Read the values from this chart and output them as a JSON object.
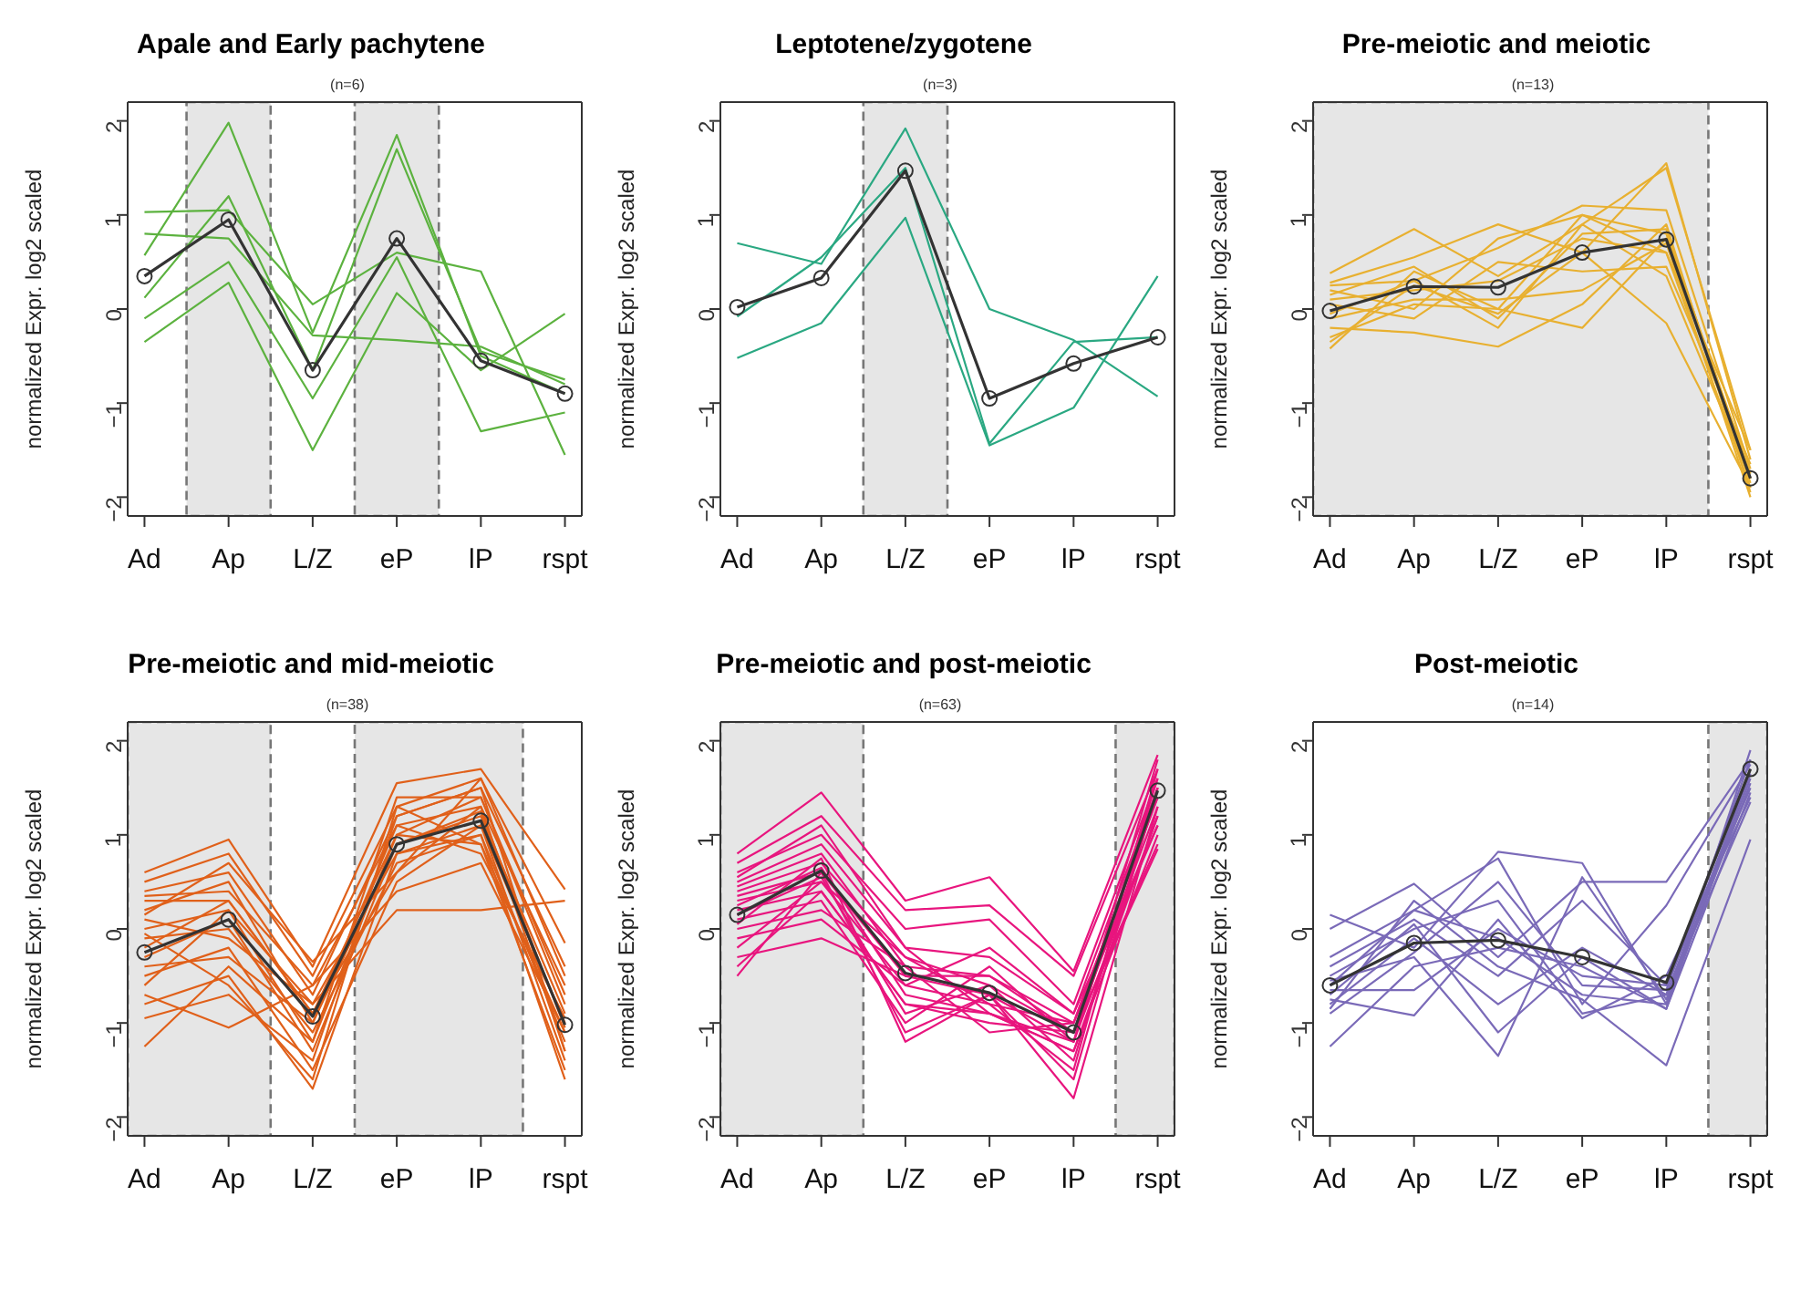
{
  "chart_data": [
    {
      "type": "line",
      "title": "Apale and Early pachytene",
      "annotations": [
        "(n=6)"
      ],
      "ylabel": "normalized Expr. log2 scaled",
      "categories": [
        "Ad",
        "Ap",
        "L/Z",
        "eP",
        "lP",
        "rspt"
      ],
      "ylim": [
        -2.2,
        2.2
      ],
      "yticks": [
        -2,
        -1,
        0,
        1,
        2
      ],
      "grid": false,
      "legend": false,
      "bands": [
        {
          "axis": "x",
          "from": "Ap",
          "to": "Ap",
          "color": "#e6e6e6"
        },
        {
          "axis": "x",
          "from": "eP",
          "to": "eP",
          "color": "#e6e6e6"
        }
      ],
      "series": [
        {
          "color": "#5cb23f",
          "marker": "none",
          "values": [
            1.03,
            1.05,
            0.05,
            0.6,
            0.4,
            -1.55
          ]
        },
        {
          "color": "#5cb23f",
          "marker": "none",
          "values": [
            0.8,
            0.75,
            -0.28,
            -0.33,
            -0.4,
            -0.8
          ]
        },
        {
          "color": "#5cb23f",
          "marker": "none",
          "values": [
            0.57,
            1.98,
            -0.25,
            1.85,
            -0.5,
            -0.9
          ]
        },
        {
          "color": "#5cb23f",
          "marker": "none",
          "values": [
            0.12,
            1.2,
            -0.65,
            1.7,
            -0.45,
            -0.75
          ]
        },
        {
          "color": "#5cb23f",
          "marker": "none",
          "values": [
            -0.1,
            0.5,
            -0.95,
            0.55,
            -1.3,
            -1.1
          ]
        },
        {
          "color": "#5cb23f",
          "marker": "none",
          "values": [
            -0.35,
            0.28,
            -1.5,
            0.17,
            -0.65,
            -0.05
          ]
        },
        {
          "color": "#333333",
          "marker": "circle",
          "values": [
            0.35,
            0.95,
            -0.65,
            0.75,
            -0.55,
            -0.9
          ]
        }
      ]
    },
    {
      "type": "line",
      "title": "Leptotene/zygotene",
      "annotations": [
        "(n=3)"
      ],
      "ylabel": "normalized Expr. log2 scaled",
      "categories": [
        "Ad",
        "Ap",
        "L/Z",
        "eP",
        "lP",
        "rspt"
      ],
      "ylim": [
        -2.2,
        2.2
      ],
      "yticks": [
        -2,
        -1,
        0,
        1,
        2
      ],
      "grid": false,
      "legend": false,
      "bands": [
        {
          "axis": "x",
          "from": "L/Z",
          "to": "L/Z",
          "color": "#e6e6e6"
        }
      ],
      "series": [
        {
          "color": "#2aa882",
          "marker": "none",
          "values": [
            0.7,
            0.48,
            1.92,
            0.0,
            -0.33,
            -0.93
          ]
        },
        {
          "color": "#2aa882",
          "marker": "none",
          "values": [
            -0.08,
            0.55,
            1.5,
            -1.43,
            -0.35,
            -0.3
          ]
        },
        {
          "color": "#2aa882",
          "marker": "none",
          "values": [
            -0.52,
            -0.15,
            0.97,
            -1.45,
            -1.05,
            0.35
          ]
        },
        {
          "color": "#333333",
          "marker": "circle",
          "values": [
            0.02,
            0.33,
            1.47,
            -0.95,
            -0.58,
            -0.3
          ]
        }
      ]
    },
    {
      "type": "line",
      "title": "Pre-meiotic and meiotic",
      "annotations": [
        "(n=13)"
      ],
      "ylabel": "normalized Expr. log2 scaled",
      "categories": [
        "Ad",
        "Ap",
        "L/Z",
        "eP",
        "lP",
        "rspt"
      ],
      "ylim": [
        -2.2,
        2.2
      ],
      "yticks": [
        -2,
        -1,
        0,
        1,
        2
      ],
      "grid": false,
      "legend": false,
      "bands": [
        {
          "axis": "x",
          "from": "Ad",
          "to": "lP",
          "color": "#e6e6e6"
        }
      ],
      "series": [
        {
          "color": "#e8b030",
          "marker": "none",
          "values": [
            0.38,
            0.85,
            0.35,
            0.9,
            1.5,
            -1.5
          ]
        },
        {
          "color": "#e8b030",
          "marker": "none",
          "values": [
            0.28,
            0.55,
            0.9,
            0.6,
            1.55,
            -1.6
          ]
        },
        {
          "color": "#e8b030",
          "marker": "none",
          "values": [
            0.25,
            0.3,
            0.65,
            1.1,
            1.05,
            -1.7
          ]
        },
        {
          "color": "#e8b030",
          "marker": "none",
          "values": [
            0.2,
            0.0,
            0.75,
            1.0,
            0.8,
            -1.75
          ]
        },
        {
          "color": "#e8b030",
          "marker": "none",
          "values": [
            0.15,
            0.45,
            -0.1,
            0.8,
            0.85,
            -1.85
          ]
        },
        {
          "color": "#e8b030",
          "marker": "none",
          "values": [
            0.1,
            0.2,
            0.3,
            0.75,
            0.6,
            -1.9
          ]
        },
        {
          "color": "#e8b030",
          "marker": "none",
          "values": [
            0.05,
            -0.1,
            0.5,
            0.4,
            0.45,
            -1.65
          ]
        },
        {
          "color": "#e8b030",
          "marker": "none",
          "values": [
            -0.05,
            0.3,
            -0.2,
            0.9,
            0.35,
            -1.8
          ]
        },
        {
          "color": "#e8b030",
          "marker": "none",
          "values": [
            -0.1,
            0.1,
            0.1,
            0.2,
            0.7,
            -2.0
          ]
        },
        {
          "color": "#e8b030",
          "marker": "none",
          "values": [
            -0.2,
            -0.25,
            -0.4,
            0.05,
            0.9,
            -1.95
          ]
        },
        {
          "color": "#e8b030",
          "marker": "none",
          "values": [
            -0.3,
            0.05,
            0.0,
            -0.2,
            0.75,
            -1.8
          ]
        },
        {
          "color": "#e8b030",
          "marker": "none",
          "values": [
            -0.35,
            0.25,
            -0.05,
            0.6,
            -0.15,
            -1.9
          ]
        },
        {
          "color": "#e8b030",
          "marker": "none",
          "values": [
            -0.42,
            0.4,
            0.0,
            1.0,
            0.6,
            -1.5
          ]
        },
        {
          "color": "#333333",
          "marker": "circle",
          "values": [
            -0.02,
            0.24,
            0.23,
            0.6,
            0.74,
            -1.8
          ]
        }
      ]
    },
    {
      "type": "line",
      "title": "Pre-meiotic and mid-meiotic",
      "annotations": [
        "(n=38)"
      ],
      "ylabel": "normalized Expr. log2 scaled",
      "categories": [
        "Ad",
        "Ap",
        "L/Z",
        "eP",
        "lP",
        "rspt"
      ],
      "ylim": [
        -2.2,
        2.2
      ],
      "yticks": [
        -2,
        -1,
        0,
        1,
        2
      ],
      "grid": false,
      "legend": false,
      "bands": [
        {
          "axis": "x",
          "from": "Ad",
          "to": "Ap",
          "color": "#e6e6e6"
        },
        {
          "axis": "x",
          "from": "eP",
          "to": "lP",
          "color": "#e6e6e6"
        }
      ],
      "series": [
        {
          "color": "#e0601a",
          "marker": "none",
          "values": [
            0.6,
            0.95,
            -0.4,
            1.55,
            1.7,
            0.42
          ]
        },
        {
          "color": "#e0601a",
          "marker": "none",
          "values": [
            0.5,
            0.8,
            -0.5,
            1.3,
            1.6,
            -0.15
          ]
        },
        {
          "color": "#e0601a",
          "marker": "none",
          "values": [
            0.4,
            0.6,
            -0.7,
            1.2,
            1.5,
            -0.4
          ]
        },
        {
          "color": "#e0601a",
          "marker": "none",
          "values": [
            0.35,
            0.4,
            -0.6,
            1.1,
            1.3,
            -0.6
          ]
        },
        {
          "color": "#e0601a",
          "marker": "none",
          "values": [
            0.3,
            0.3,
            -0.9,
            1.0,
            1.4,
            -0.8
          ]
        },
        {
          "color": "#e0601a",
          "marker": "none",
          "values": [
            0.2,
            0.5,
            -1.0,
            0.9,
            1.2,
            -0.9
          ]
        },
        {
          "color": "#e0601a",
          "marker": "none",
          "values": [
            0.1,
            -0.1,
            -0.8,
            0.8,
            1.1,
            -1.0
          ]
        },
        {
          "color": "#e0601a",
          "marker": "none",
          "values": [
            0.0,
            0.2,
            -1.2,
            1.0,
            0.9,
            -1.1
          ]
        },
        {
          "color": "#e0601a",
          "marker": "none",
          "values": [
            -0.1,
            0.0,
            -1.1,
            0.7,
            1.0,
            -1.2
          ]
        },
        {
          "color": "#e0601a",
          "marker": "none",
          "values": [
            -0.2,
            0.3,
            -0.9,
            0.6,
            1.3,
            -1.3
          ]
        },
        {
          "color": "#e0601a",
          "marker": "none",
          "values": [
            -0.3,
            0.1,
            -1.3,
            0.9,
            1.25,
            -1.05
          ]
        },
        {
          "color": "#e0601a",
          "marker": "none",
          "values": [
            -0.4,
            -0.3,
            -1.0,
            1.1,
            0.8,
            -0.95
          ]
        },
        {
          "color": "#e0601a",
          "marker": "none",
          "values": [
            -0.5,
            -0.2,
            -1.5,
            0.5,
            1.1,
            -1.4
          ]
        },
        {
          "color": "#e0601a",
          "marker": "none",
          "values": [
            -0.6,
            0.2,
            -0.8,
            0.2,
            0.2,
            0.3
          ]
        },
        {
          "color": "#e0601a",
          "marker": "none",
          "values": [
            -0.7,
            -1.05,
            -0.6,
            0.4,
            0.7,
            -1.1
          ]
        },
        {
          "color": "#e0601a",
          "marker": "none",
          "values": [
            -0.8,
            -0.5,
            -1.7,
            0.8,
            1.0,
            -1.6
          ]
        },
        {
          "color": "#e0601a",
          "marker": "none",
          "values": [
            -0.95,
            -0.7,
            -1.4,
            1.2,
            1.5,
            -1.3
          ]
        },
        {
          "color": "#e0601a",
          "marker": "none",
          "values": [
            -1.25,
            -0.4,
            -1.2,
            1.4,
            1.4,
            -0.7
          ]
        },
        {
          "color": "#e0601a",
          "marker": "none",
          "values": [
            0.15,
            0.7,
            -0.35,
            0.6,
            1.6,
            -0.5
          ]
        },
        {
          "color": "#e0601a",
          "marker": "none",
          "values": [
            -0.05,
            -0.6,
            -1.6,
            1.3,
            0.9,
            -1.5
          ]
        },
        {
          "color": "#333333",
          "marker": "circle",
          "values": [
            -0.25,
            0.1,
            -0.93,
            0.9,
            1.15,
            -1.02
          ]
        }
      ]
    },
    {
      "type": "line",
      "title": "Pre-meiotic and post-meiotic",
      "annotations": [
        "(n=63)"
      ],
      "ylabel": "normalized Expr. log2 scaled",
      "categories": [
        "Ad",
        "Ap",
        "L/Z",
        "eP",
        "lP",
        "rspt"
      ],
      "ylim": [
        -2.2,
        2.2
      ],
      "yticks": [
        -2,
        -1,
        0,
        1,
        2
      ],
      "grid": false,
      "legend": false,
      "bands": [
        {
          "axis": "x",
          "from": "Ad",
          "to": "Ap",
          "color": "#e6e6e6"
        },
        {
          "axis": "x",
          "from": "rspt",
          "to": "rspt",
          "color": "#e6e6e6"
        }
      ],
      "series": [
        {
          "color": "#e8157e",
          "marker": "none",
          "values": [
            0.8,
            1.45,
            0.3,
            0.55,
            -0.45,
            1.85
          ]
        },
        {
          "color": "#e8157e",
          "marker": "none",
          "values": [
            0.7,
            1.2,
            0.2,
            0.25,
            -0.5,
            1.7
          ]
        },
        {
          "color": "#e8157e",
          "marker": "none",
          "values": [
            0.6,
            1.0,
            0.0,
            0.1,
            -0.8,
            1.6
          ]
        },
        {
          "color": "#e8157e",
          "marker": "none",
          "values": [
            0.5,
            0.9,
            -0.2,
            -0.3,
            -0.9,
            1.5
          ]
        },
        {
          "color": "#e8157e",
          "marker": "none",
          "values": [
            0.45,
            0.8,
            -0.4,
            -0.5,
            -1.0,
            1.4
          ]
        },
        {
          "color": "#e8157e",
          "marker": "none",
          "values": [
            0.4,
            0.7,
            -0.3,
            -0.6,
            -1.1,
            1.3
          ]
        },
        {
          "color": "#e8157e",
          "marker": "none",
          "values": [
            0.35,
            0.6,
            -0.5,
            -0.7,
            -1.2,
            1.2
          ]
        },
        {
          "color": "#e8157e",
          "marker": "none",
          "values": [
            0.3,
            0.5,
            -0.6,
            -0.8,
            -1.0,
            1.1
          ]
        },
        {
          "color": "#e8157e",
          "marker": "none",
          "values": [
            0.25,
            0.65,
            -0.7,
            -0.9,
            -1.3,
            1.0
          ]
        },
        {
          "color": "#e8157e",
          "marker": "none",
          "values": [
            0.2,
            0.4,
            -0.8,
            -1.0,
            -1.1,
            0.9
          ]
        },
        {
          "color": "#e8157e",
          "marker": "none",
          "values": [
            0.15,
            0.55,
            -0.9,
            -0.6,
            -1.4,
            1.5
          ]
        },
        {
          "color": "#e8157e",
          "marker": "none",
          "values": [
            0.1,
            0.3,
            -1.0,
            -0.4,
            -1.2,
            1.6
          ]
        },
        {
          "color": "#e8157e",
          "marker": "none",
          "values": [
            0.05,
            0.75,
            -1.2,
            -0.7,
            -1.8,
            1.3
          ]
        },
        {
          "color": "#e8157e",
          "marker": "none",
          "values": [
            0.0,
            0.2,
            -0.4,
            -1.1,
            -1.0,
            1.4
          ]
        },
        {
          "color": "#e8157e",
          "marker": "none",
          "values": [
            -0.1,
            0.1,
            -0.6,
            -0.2,
            -0.9,
            1.1
          ]
        },
        {
          "color": "#e8157e",
          "marker": "none",
          "values": [
            -0.2,
            0.5,
            -0.3,
            -0.8,
            -1.5,
            1.7
          ]
        },
        {
          "color": "#e8157e",
          "marker": "none",
          "values": [
            -0.3,
            -0.1,
            -0.5,
            -0.5,
            -1.1,
            0.85
          ]
        },
        {
          "color": "#e8157e",
          "marker": "none",
          "values": [
            -0.4,
            0.4,
            -0.8,
            -0.9,
            -1.3,
            1.2
          ]
        },
        {
          "color": "#e8157e",
          "marker": "none",
          "values": [
            -0.5,
            0.6,
            -1.1,
            -0.7,
            -1.6,
            1.5
          ]
        },
        {
          "color": "#e8157e",
          "marker": "none",
          "values": [
            0.55,
            1.1,
            -0.2,
            -0.9,
            -1.2,
            1.8
          ]
        },
        {
          "color": "#333333",
          "marker": "circle",
          "values": [
            0.15,
            0.62,
            -0.47,
            -0.68,
            -1.1,
            1.47
          ]
        }
      ]
    },
    {
      "type": "line",
      "title": "Post-meiotic",
      "annotations": [
        "(n=14)"
      ],
      "ylabel": "normalized Expr. log2 scaled",
      "categories": [
        "Ad",
        "Ap",
        "L/Z",
        "eP",
        "lP",
        "rspt"
      ],
      "ylim": [
        -2.2,
        2.2
      ],
      "yticks": [
        -2,
        -1,
        0,
        1,
        2
      ],
      "grid": false,
      "legend": false,
      "bands": [
        {
          "axis": "x",
          "from": "rspt",
          "to": "rspt",
          "color": "#e6e6e6"
        }
      ],
      "series": [
        {
          "color": "#7a6ab8",
          "marker": "none",
          "values": [
            0.15,
            -0.2,
            0.82,
            0.7,
            -0.8,
            1.9
          ]
        },
        {
          "color": "#7a6ab8",
          "marker": "none",
          "values": [
            0.0,
            0.48,
            -0.3,
            0.5,
            0.5,
            1.8
          ]
        },
        {
          "color": "#7a6ab8",
          "marker": "none",
          "values": [
            -0.3,
            0.2,
            0.75,
            -0.8,
            0.25,
            1.75
          ]
        },
        {
          "color": "#7a6ab8",
          "marker": "none",
          "values": [
            -0.4,
            0.1,
            -0.5,
            0.3,
            -0.6,
            1.7
          ]
        },
        {
          "color": "#7a6ab8",
          "marker": "none",
          "values": [
            -0.5,
            0.0,
            0.3,
            -0.9,
            -0.7,
            1.65
          ]
        },
        {
          "color": "#7a6ab8",
          "marker": "none",
          "values": [
            -0.55,
            -0.3,
            -1.35,
            0.55,
            -0.75,
            1.6
          ]
        },
        {
          "color": "#7a6ab8",
          "marker": "none",
          "values": [
            -0.6,
            0.2,
            -0.1,
            -0.7,
            -0.8,
            1.55
          ]
        },
        {
          "color": "#7a6ab8",
          "marker": "none",
          "values": [
            -0.65,
            -0.65,
            0.0,
            -0.5,
            -0.6,
            1.5
          ]
        },
        {
          "color": "#7a6ab8",
          "marker": "none",
          "values": [
            -0.7,
            0.05,
            -1.1,
            -0.3,
            -0.85,
            1.45
          ]
        },
        {
          "color": "#7a6ab8",
          "marker": "none",
          "values": [
            -0.75,
            -0.92,
            0.1,
            -0.95,
            -0.5,
            1.4
          ]
        },
        {
          "color": "#7a6ab8",
          "marker": "none",
          "values": [
            -0.8,
            -0.1,
            -0.8,
            -0.2,
            -0.7,
            1.35
          ]
        },
        {
          "color": "#7a6ab8",
          "marker": "none",
          "values": [
            -0.85,
            0.3,
            -0.4,
            -0.75,
            -1.45,
            0.95
          ]
        },
        {
          "color": "#7a6ab8",
          "marker": "none",
          "values": [
            -0.9,
            -0.25,
            0.5,
            -0.6,
            -0.65,
            1.8
          ]
        },
        {
          "color": "#7a6ab8",
          "marker": "none",
          "values": [
            -1.25,
            -0.4,
            -0.2,
            -0.4,
            -0.85,
            1.7
          ]
        },
        {
          "color": "#333333",
          "marker": "circle",
          "values": [
            -0.6,
            -0.15,
            -0.12,
            -0.3,
            -0.57,
            1.7
          ]
        }
      ]
    }
  ]
}
